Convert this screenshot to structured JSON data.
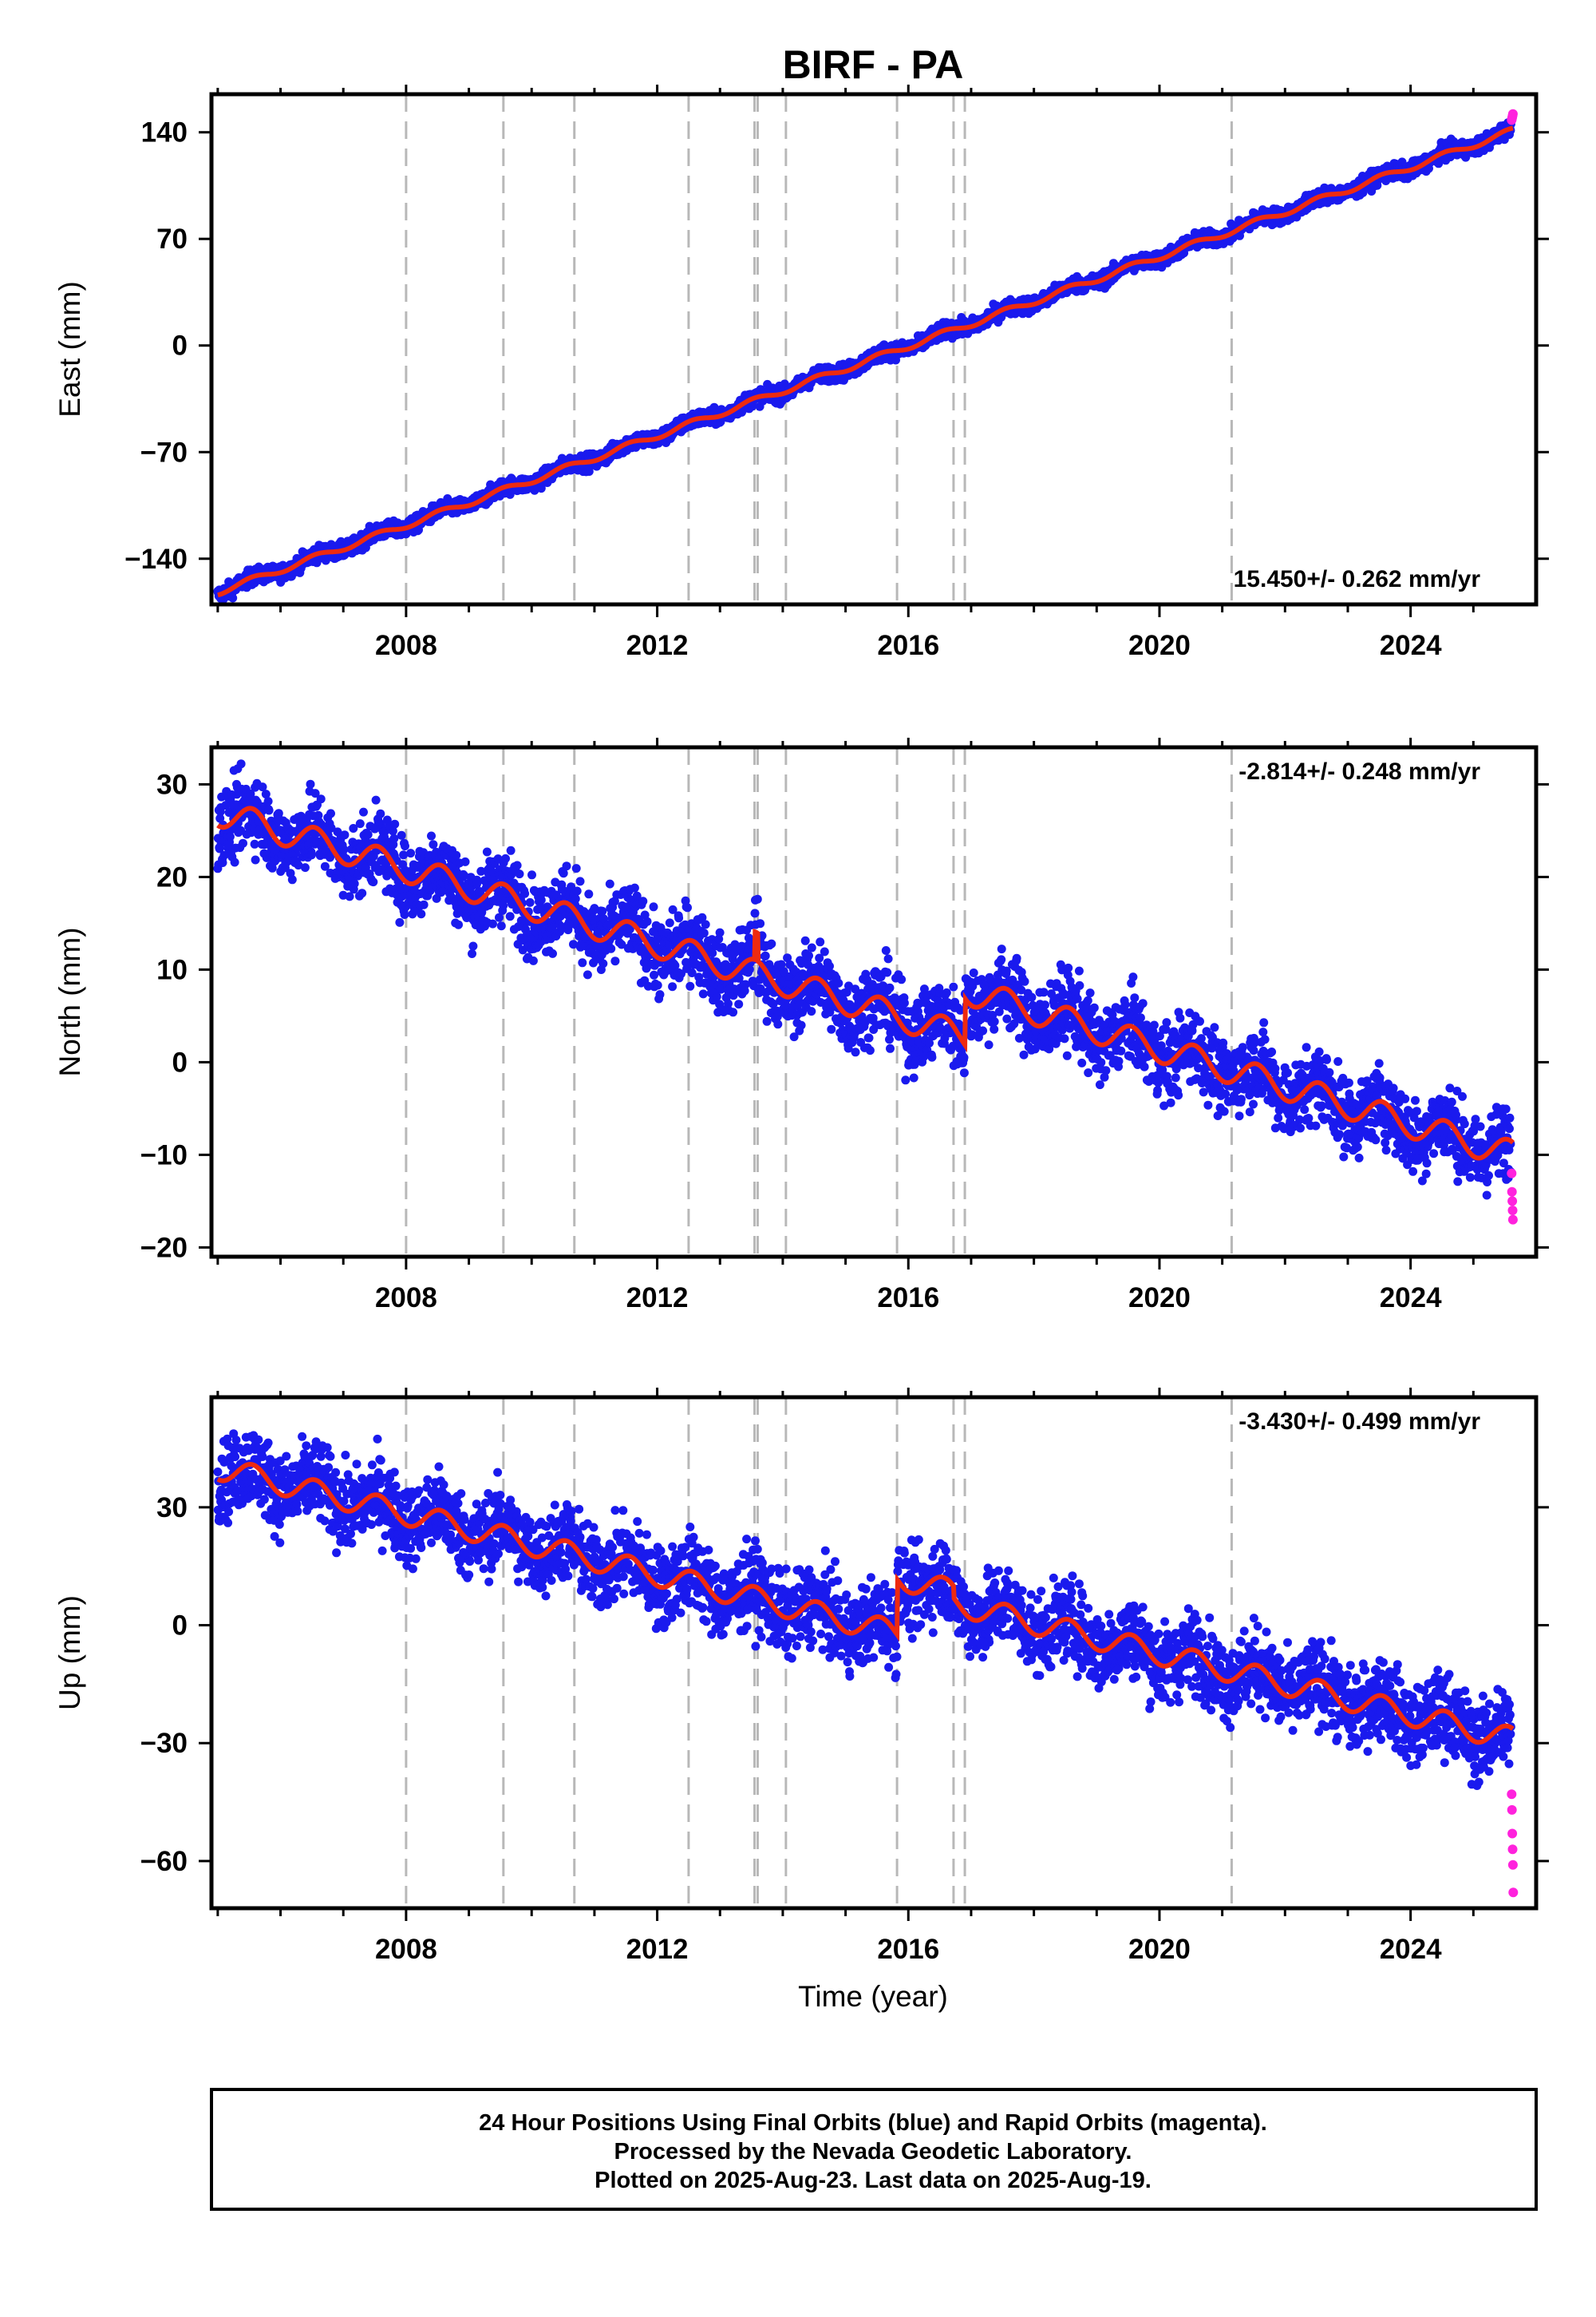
{
  "chart_data": {
    "type": "scatter",
    "title": "BIRF - PA",
    "xlabel": "Time (year)",
    "xlim": [
      2004.9,
      2026.0
    ],
    "xticks": [
      2008,
      2012,
      2016,
      2020,
      2024
    ],
    "grid": false,
    "series_colors": {
      "final_orbits": "#1a1aee",
      "rapid_orbits": "#ff22dd",
      "model": "#ee2a10",
      "offsets": "#b8b8b8"
    },
    "vertical_lines_x": [
      2008.0,
      2009.55,
      2010.68,
      2012.5,
      2013.55,
      2013.6,
      2014.05,
      2015.82,
      2016.72,
      2016.9,
      2021.15
    ],
    "panels": [
      {
        "name": "east",
        "ylabel": "East (mm)",
        "ylim": [
          -170,
          165
        ],
        "yticks": [
          -140,
          -70,
          0,
          70,
          140
        ],
        "rate_text": "15.450+/- 0.262 mm/yr",
        "rate_position": "bottom-right",
        "start_year": 2005.0,
        "end_year": 2025.63,
        "trend_start": -162,
        "trend_end": 141,
        "seasonal_amplitude": 2,
        "scatter_spread": 2.5,
        "steps": [],
        "rapid_values": [
          148,
          149,
          150,
          151,
          152
        ]
      },
      {
        "name": "north",
        "ylabel": "North (mm)",
        "ylim": [
          -21,
          34
        ],
        "yticks": [
          -20,
          -10,
          0,
          10,
          20,
          30
        ],
        "rate_text": "-2.814+/- 0.248 mm/yr",
        "rate_position": "top-right",
        "start_year": 2005.0,
        "end_year": 2025.63,
        "trend_start": 27,
        "trend_end": -15,
        "seasonal_amplitude": 1.5,
        "scatter_spread": 2,
        "steps": [
          [
            2013.55,
            3
          ],
          [
            2013.6,
            -3
          ],
          [
            2016.9,
            5
          ]
        ],
        "rapid_values": [
          -12,
          -14,
          -15,
          -16,
          -17
        ]
      },
      {
        "name": "up",
        "ylabel": "Up (mm)",
        "ylim": [
          -72,
          58
        ],
        "yticks": [
          -60,
          -30,
          0,
          30
        ],
        "rate_text": "-3.430+/- 0.499 mm/yr",
        "rate_position": "top-right",
        "start_year": 2005.0,
        "end_year": 2025.63,
        "trend_start": 40,
        "trend_end": -40,
        "seasonal_amplitude": 3,
        "scatter_spread": 5,
        "steps": [
          [
            2015.82,
            14
          ],
          [
            2016.72,
            -3
          ]
        ],
        "rapid_values": [
          -43,
          -47,
          -53,
          -57,
          -61,
          -68
        ]
      }
    ]
  },
  "footer": {
    "line1": "24 Hour Positions Using Final Orbits (blue) and Rapid Orbits (magenta).",
    "line2": "Processed by the Nevada Geodetic Laboratory.",
    "line3": "Plotted on 2025-Aug-23. Last data on 2025-Aug-19."
  }
}
